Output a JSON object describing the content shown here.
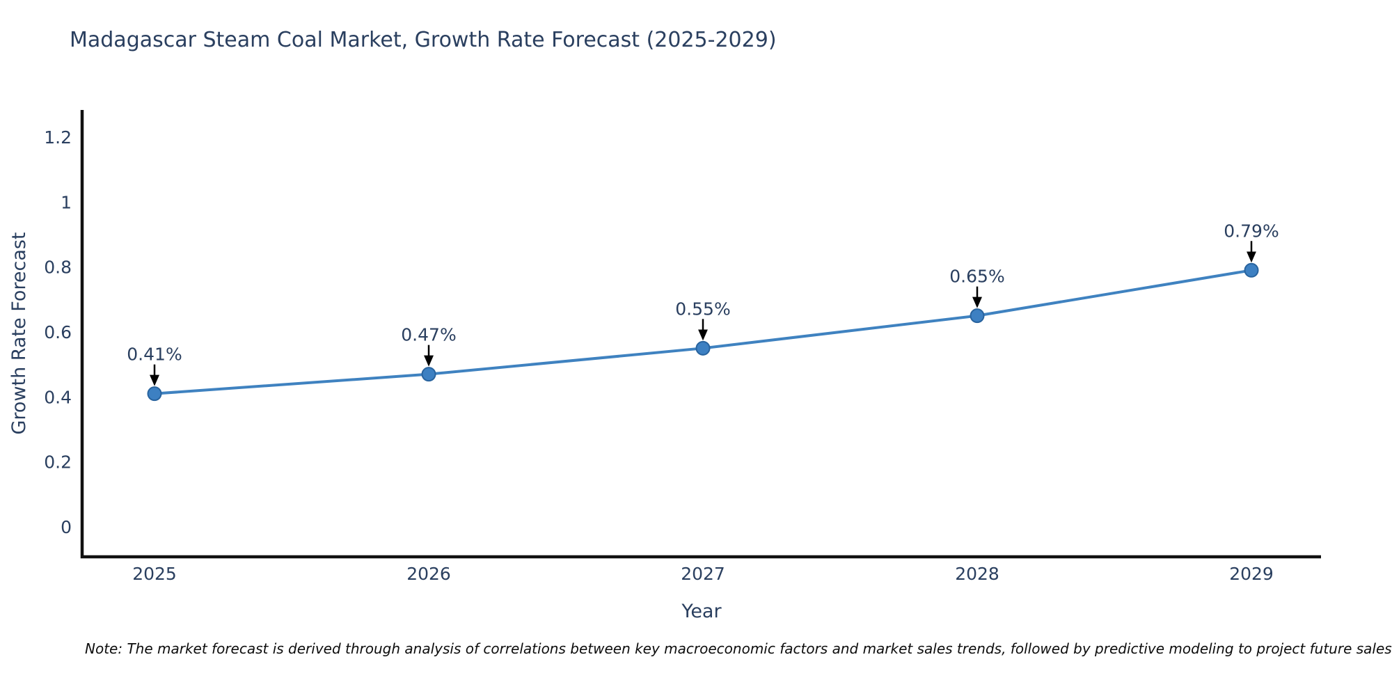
{
  "title": "Madagascar Steam Coal Market, Growth Rate Forecast (2025-2029)",
  "note": "Note: The market forecast is derived through analysis of correlations between key macroeconomic factors and market sales trends, followed by predictive modeling to project future sales",
  "chart_data": {
    "type": "line",
    "title": "Madagascar Steam Coal Market, Growth Rate Forecast (2025-2029)",
    "xlabel": "Year",
    "ylabel": "Growth Rate Forecast",
    "categories": [
      2025,
      2026,
      2027,
      2028,
      2029
    ],
    "values": [
      0.41,
      0.47,
      0.55,
      0.65,
      0.79
    ],
    "point_labels": [
      "0.41%",
      "0.47%",
      "0.55%",
      "0.65%",
      "0.79%"
    ],
    "y_ticks": [
      0,
      0.2,
      0.4,
      0.6,
      0.8,
      1,
      1.2
    ],
    "ylim": [
      -0.09,
      1.29
    ],
    "xlim": [
      2024.73,
      2029.26
    ],
    "grid": false,
    "legend": "none",
    "markers_with_data_labels": true,
    "colors": {
      "line": "#3f82c0",
      "marker_fill": "#3d80c2",
      "marker_edge": "#28639e",
      "axis": "#111111",
      "text": "#2a3f5f",
      "annotation_arrow": "#000000",
      "note_text": "#0d0d0d",
      "background": "#ffffff"
    }
  }
}
